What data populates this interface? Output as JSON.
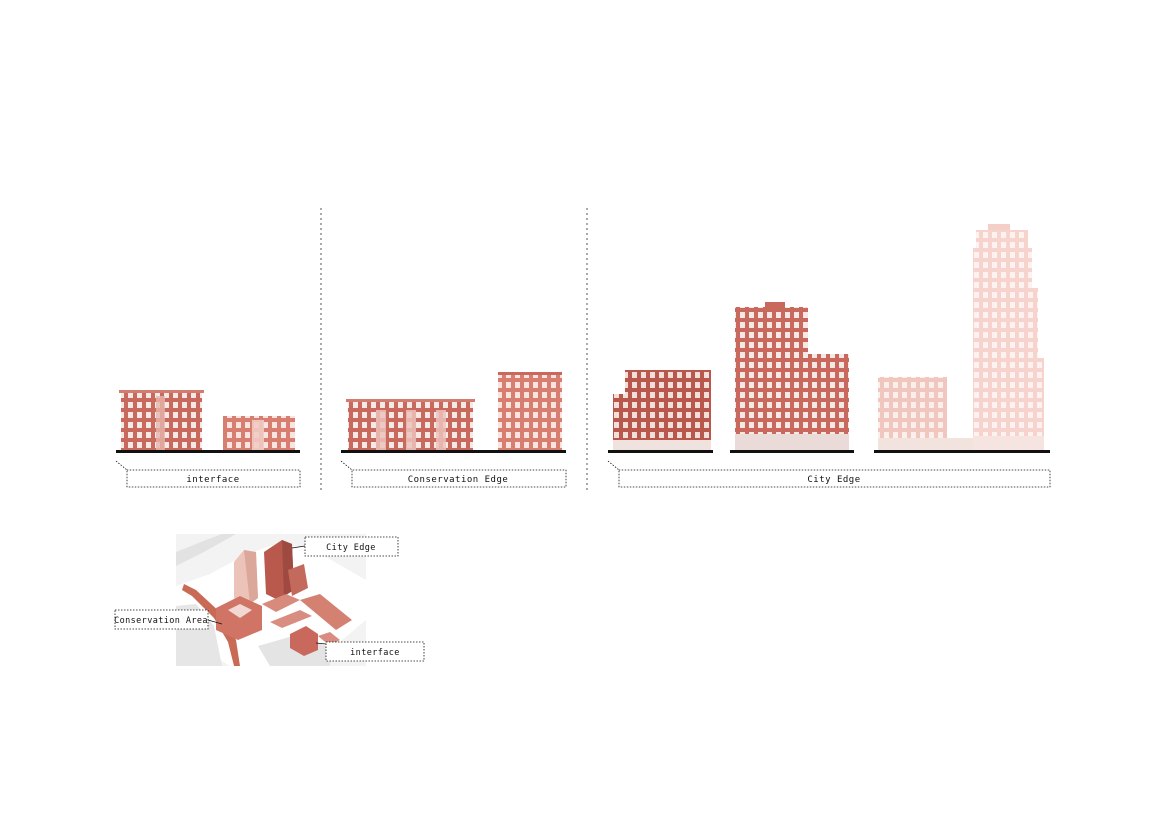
{
  "colors": {
    "brick": "#c9685c",
    "brick_dark": "#b8574c",
    "brick_light": "#e7b6ad",
    "brick_pale": "#f4d6d0",
    "window": "#f6e9e5",
    "ground": "#111111",
    "divider": "#555555",
    "map_bg": "#e9e9e9"
  },
  "sections": [
    {
      "id": "interface",
      "label": "interface"
    },
    {
      "id": "conservation",
      "label": "Conservation Edge"
    },
    {
      "id": "city",
      "label": "City Edge"
    }
  ],
  "map": {
    "callouts": [
      {
        "id": "city",
        "label": "City Edge"
      },
      {
        "id": "conservation",
        "label": "Conservation Area"
      },
      {
        "id": "interface",
        "label": "interface"
      }
    ]
  }
}
